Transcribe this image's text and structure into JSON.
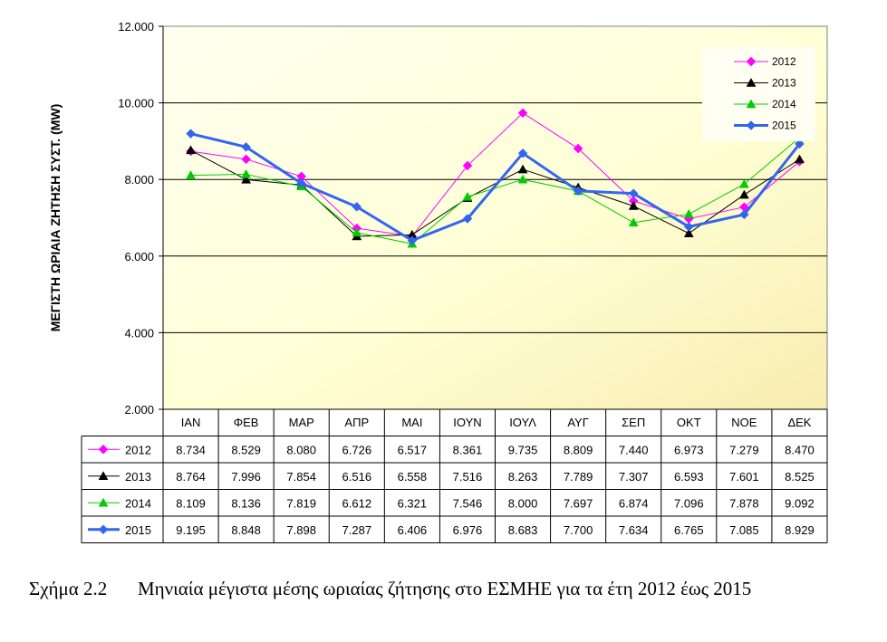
{
  "chart_data": {
    "type": "line",
    "ylabel": "ΜΕΓΙΣΤΗ ΩΡΙΑΙΑ ΖΗΤΗΣΗ ΣΥΣΤ. (MW)",
    "ylim": [
      2000,
      12000
    ],
    "yticks": [
      2000,
      4000,
      6000,
      8000,
      10000,
      12000
    ],
    "ytick_labels": [
      "2.000",
      "4.000",
      "6.000",
      "8.000",
      "10.000",
      "12.000"
    ],
    "grid": "horizontal",
    "legend_position": "top-right",
    "categories": [
      "ΙΑΝ",
      "ΦΕΒ",
      "ΜΑΡ",
      "ΑΠΡ",
      "ΜΑΙ",
      "ΙΟΥΝ",
      "ΙΟΥΛ",
      "ΑΥΓ",
      "ΣΕΠ",
      "ΟΚΤ",
      "ΝΟΕ",
      "ΔΕΚ"
    ],
    "series": [
      {
        "name": "2012",
        "color": "#ff00ff",
        "marker": "diamond",
        "width": 1,
        "values": [
          8734,
          8529,
          8080,
          6726,
          6517,
          8361,
          9735,
          8809,
          7440,
          6973,
          7279,
          8470
        ],
        "labels": [
          "8.734",
          "8.529",
          "8.080",
          "6.726",
          "6.517",
          "8.361",
          "9.735",
          "8.809",
          "7.440",
          "6.973",
          "7.279",
          "8.470"
        ]
      },
      {
        "name": "2013",
        "color": "#000000",
        "marker": "triangle",
        "width": 1,
        "values": [
          8764,
          7996,
          7854,
          6516,
          6558,
          7516,
          8263,
          7789,
          7307,
          6593,
          7601,
          8525
        ],
        "labels": [
          "8.764",
          "7.996",
          "7.854",
          "6.516",
          "6.558",
          "7.516",
          "8.263",
          "7.789",
          "7.307",
          "6.593",
          "7.601",
          "8.525"
        ]
      },
      {
        "name": "2014",
        "color": "#00cc00",
        "marker": "triangle",
        "width": 1,
        "values": [
          8109,
          8136,
          7819,
          6612,
          6321,
          7546,
          8000,
          7697,
          6874,
          7096,
          7878,
          9092
        ],
        "labels": [
          "8.109",
          "8.136",
          "7.819",
          "6.612",
          "6.321",
          "7.546",
          "8.000",
          "7.697",
          "6.874",
          "7.096",
          "7.878",
          "9.092"
        ]
      },
      {
        "name": "2015",
        "color": "#3366ee",
        "marker": "diamond",
        "width": 3,
        "values": [
          9195,
          8848,
          7898,
          7287,
          6406,
          6976,
          8683,
          7700,
          7634,
          6765,
          7085,
          8929
        ],
        "labels": [
          "9.195",
          "8.848",
          "7.898",
          "7.287",
          "6.406",
          "6.976",
          "8.683",
          "7.700",
          "7.634",
          "6.765",
          "7.085",
          "8.929"
        ]
      }
    ]
  },
  "caption": {
    "number": "Σχήμα 2.2",
    "text": "Μηνιαία μέγιστα μέσης ωριαίας ζήτησης στο ΕΣΜΗΕ για τα έτη 2012 έως 2015"
  }
}
